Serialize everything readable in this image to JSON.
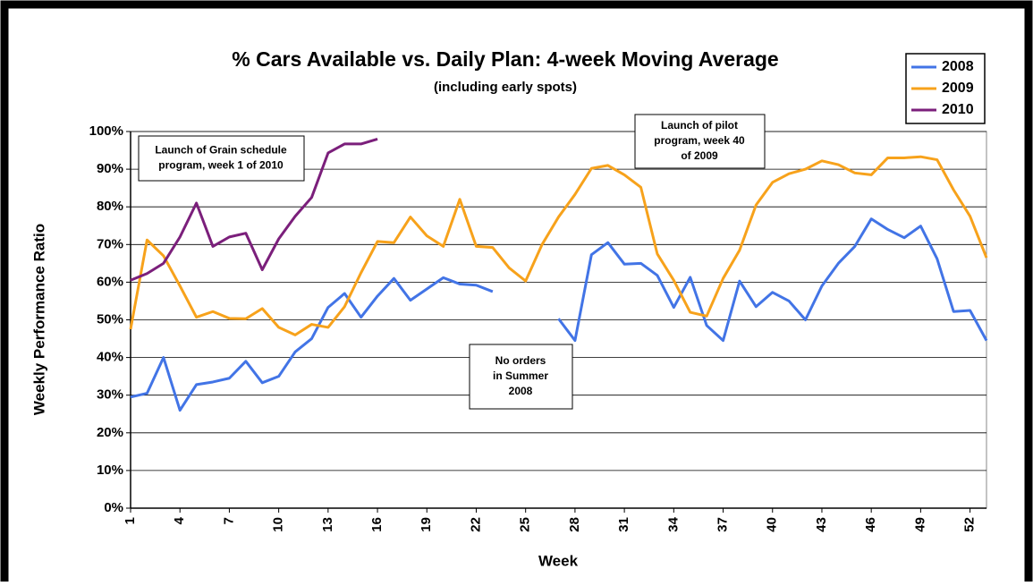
{
  "chart_data": {
    "type": "line",
    "title": "% Cars Available vs. Daily Plan: 4-week Moving Average",
    "subtitle": "(including early spots)",
    "x_label": "Week",
    "y_label": "Weekly Performance Ratio",
    "x": [
      1,
      2,
      3,
      4,
      5,
      6,
      7,
      8,
      9,
      10,
      11,
      12,
      13,
      14,
      15,
      16,
      17,
      18,
      19,
      20,
      21,
      22,
      23,
      24,
      25,
      26,
      27,
      28,
      29,
      30,
      31,
      32,
      33,
      34,
      35,
      36,
      37,
      38,
      39,
      40,
      41,
      42,
      43,
      44,
      45,
      46,
      47,
      48,
      49,
      50,
      51,
      52,
      53
    ],
    "xlim": [
      1,
      53
    ],
    "xticks": [
      1,
      4,
      7,
      10,
      13,
      16,
      19,
      22,
      25,
      28,
      31,
      34,
      37,
      40,
      43,
      46,
      49,
      52
    ],
    "ylim": [
      0,
      100
    ],
    "yticks": [
      {
        "value": 0,
        "label": "0%"
      },
      {
        "value": 10,
        "label": "10%"
      },
      {
        "value": 20,
        "label": "20%"
      },
      {
        "value": 30,
        "label": "30%"
      },
      {
        "value": 40,
        "label": "40%"
      },
      {
        "value": 50,
        "label": "50%"
      },
      {
        "value": 60,
        "label": "60%"
      },
      {
        "value": 70,
        "label": "70%"
      },
      {
        "value": 80,
        "label": "80%"
      },
      {
        "value": 90,
        "label": "90%"
      },
      {
        "value": 100,
        "label": "100%"
      }
    ],
    "grid": true,
    "legend": "top-right",
    "series": [
      {
        "name": "2008",
        "color": "#4274e6",
        "values": [
          29.5,
          30.5,
          40,
          26,
          32.8,
          33.5,
          34.5,
          39,
          33.3,
          35,
          41.5,
          45,
          53.3,
          57,
          50.7,
          56.3,
          61,
          55.2,
          58.2,
          61.2,
          59.5,
          59.2,
          57.5,
          null,
          null,
          null,
          50.3,
          44.5,
          67.3,
          70.5,
          64.8,
          65,
          61.8,
          53.3,
          61.3,
          48.5,
          44.5,
          60.3,
          53.5,
          57.3,
          55,
          50,
          59,
          65,
          69.5,
          76.8,
          74,
          71.8,
          74.9,
          66.2,
          52.2,
          52.5,
          44.5
        ]
      },
      {
        "name": "2009",
        "color": "#f7a21b",
        "values": [
          47.5,
          71.2,
          67,
          59,
          50.7,
          52.2,
          50.4,
          50.3,
          53,
          48,
          46,
          48.8,
          48,
          53.5,
          62.5,
          70.8,
          70.5,
          77.3,
          72.3,
          69.5,
          82,
          69.5,
          69.2,
          63.8,
          60.3,
          70,
          77.3,
          83.3,
          90.2,
          91,
          88.5,
          85.2,
          67.5,
          60.5,
          52,
          51,
          61,
          68.5,
          80.5,
          86.5,
          88.8,
          90,
          92.2,
          91.2,
          89,
          88.5,
          93,
          93,
          93.3,
          92.5,
          84.5,
          77.5,
          66.5
        ]
      },
      {
        "name": "2010",
        "color": "#7b1f7b",
        "values": [
          60.5,
          62.3,
          65,
          72,
          81,
          69.5,
          72,
          73,
          63.3,
          71.5,
          77.5,
          82.5,
          94.3,
          96.7,
          96.7,
          98,
          null,
          null,
          null,
          null,
          null,
          null,
          null,
          null,
          null,
          null,
          null,
          null,
          null,
          null,
          null,
          null,
          null,
          null,
          null,
          null,
          null,
          null,
          null,
          null,
          null,
          null,
          null,
          null,
          null,
          null,
          null,
          null,
          null,
          null,
          null,
          null,
          null
        ]
      }
    ],
    "annotations": [
      {
        "text": [
          "Launch of Grain schedule",
          "program, week 1 of 2010"
        ]
      },
      {
        "text": [
          "No orders",
          "in Summer",
          "2008"
        ]
      },
      {
        "text": [
          "Launch of pilot",
          "program, week 40",
          "of 2009"
        ]
      }
    ]
  }
}
